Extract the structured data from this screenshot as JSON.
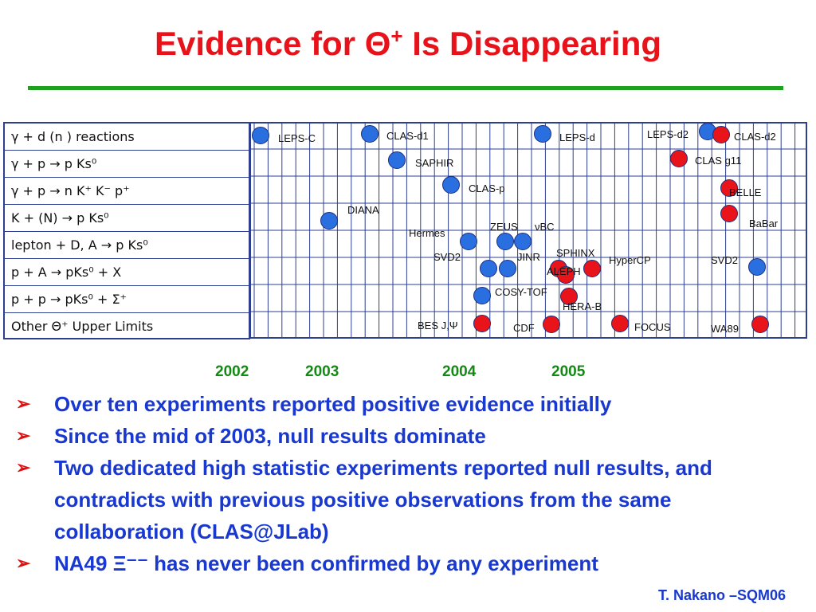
{
  "title": {
    "prefix": "Evidence for ",
    "symbol": "Θ",
    "sup": "+",
    "suffix": " Is Disappearing"
  },
  "rows": [
    "γ +  d (n )   reactions",
    "γ +  p  → p Ks⁰",
    "γ +  p → n K⁺ K⁻ p⁺",
    "K + (N) → p Ks⁰",
    "lepton + D, A → p Ks⁰",
    "p + A →  pKs⁰ + X",
    "p + p →  pKs⁰ + Σ⁺",
    "Other Θ⁺ Upper Limits"
  ],
  "colors": {
    "positive": "#2a6fe0",
    "null": "#e8141a",
    "grid": "#2e3f8f"
  },
  "markers": [
    {
      "label": "LEPS-C",
      "result": "positive",
      "row": 0
    },
    {
      "label": "CLAS-d1",
      "result": "positive",
      "row": 0
    },
    {
      "label": "LEPS-d",
      "result": "positive",
      "row": 0
    },
    {
      "label": "LEPS-d2",
      "result": "positive",
      "row": 0
    },
    {
      "label": "CLAS-d2",
      "result": "null",
      "row": 0
    },
    {
      "label": "SAPHIR",
      "result": "positive",
      "row": 1
    },
    {
      "label": "CLAS g11",
      "result": "null",
      "row": 1
    },
    {
      "label": "CLAS-p",
      "result": "positive",
      "row": 2
    },
    {
      "label": "BELLE",
      "result": "null",
      "row": 2
    },
    {
      "label": "DIANA",
      "result": "positive",
      "row": 3
    },
    {
      "label": "BaBar",
      "result": "null",
      "row": 3
    },
    {
      "label": "Hermes",
      "result": "positive",
      "row": 4
    },
    {
      "label": "ZEUS",
      "result": "positive",
      "row": 4
    },
    {
      "label": "νBC",
      "result": "positive",
      "row": 4
    },
    {
      "label": "SVD2",
      "result": "positive",
      "row": 5
    },
    {
      "label": "JINR",
      "result": "positive",
      "row": 5
    },
    {
      "label": "SPHINX",
      "result": "null",
      "row": 5
    },
    {
      "label": "ALEPH",
      "result": "null",
      "row": 5
    },
    {
      "label": "HyperCP",
      "result": "null",
      "row": 5
    },
    {
      "label": "SVD2",
      "result": "positive",
      "row": 5
    },
    {
      "label": "COSY-TOF",
      "result": "positive",
      "row": 6
    },
    {
      "label": "HERA-B",
      "result": "null",
      "row": 6
    },
    {
      "label": "BES J,Ψ",
      "result": "null",
      "row": 7
    },
    {
      "label": "CDF",
      "result": "null",
      "row": 7
    },
    {
      "label": "FOCUS",
      "result": "null",
      "row": 7
    },
    {
      "label": "WA89",
      "result": "null",
      "row": 7
    }
  ],
  "years": [
    "2002",
    "2003",
    "2004",
    "2005"
  ],
  "bullets": [
    "Over ten experiments reported positive evidence initially",
    "Since the mid of 2003, null results dominate",
    "Two dedicated high statistic experiments reported null results, and contradicts with previous positive observations from the same collaboration (CLAS@JLab)",
    "NA49 Ξ⁻⁻ has never been confirmed by any experiment"
  ],
  "bullet_mark": "➢",
  "footer": "T. Nakano –SQM06"
}
